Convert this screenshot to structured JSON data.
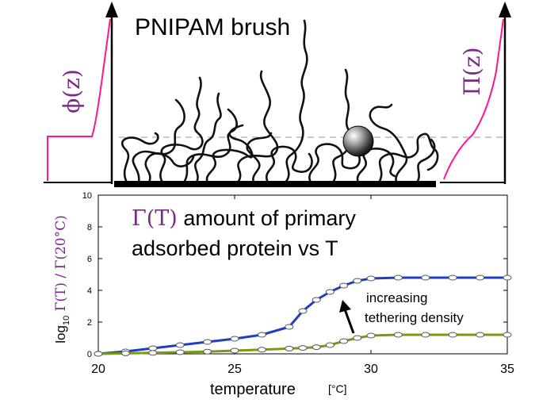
{
  "diagram": {
    "title": "PNIPAM brush",
    "left_profile_label": "ϕ(z)",
    "right_profile_label": "Π(z)",
    "profile_color": "#ff1493",
    "label_color": "#7b2a8c",
    "brush_color": "#111111"
  },
  "chart_data": {
    "type": "line",
    "annotation_title_symbol": "Γ(T)",
    "annotation_title_rest_line1": " amount of primary",
    "annotation_title_line2": "adsorbed protein vs T",
    "annotation_arrow_text_line1": "increasing",
    "annotation_arrow_text_line2": "tethering density",
    "ylabel_prefix": "log",
    "ylabel_sub": "10",
    "ylabel_expr": " Γ(T) / Γ(20°C)",
    "xlabel": "temperature",
    "xunit": "[°C]",
    "xlim": [
      20,
      35
    ],
    "ylim": [
      0,
      10
    ],
    "xticks": [
      20,
      25,
      30,
      35
    ],
    "yticks": [
      0,
      2,
      4,
      6,
      8,
      10
    ],
    "grid": false,
    "series": [
      {
        "color": "#1f3fbf",
        "x": [
          20,
          21,
          22,
          23,
          24,
          25,
          26,
          27,
          27.5,
          28,
          28.5,
          29,
          29.5,
          30,
          31,
          32,
          33,
          34,
          35
        ],
        "y": [
          0,
          0.15,
          0.35,
          0.55,
          0.75,
          0.95,
          1.2,
          1.7,
          2.7,
          3.4,
          3.9,
          4.3,
          4.6,
          4.75,
          4.8,
          4.8,
          4.8,
          4.8,
          4.8
        ]
      },
      {
        "color": "#7a9a10",
        "x": [
          20,
          21,
          22,
          23,
          24,
          25,
          26,
          27,
          27.5,
          28,
          28.5,
          29,
          29.5,
          30,
          31,
          32,
          33,
          34,
          35
        ],
        "y": [
          0,
          0.03,
          0.06,
          0.1,
          0.14,
          0.2,
          0.26,
          0.33,
          0.37,
          0.42,
          0.55,
          0.8,
          1.0,
          1.15,
          1.2,
          1.2,
          1.2,
          1.2,
          1.2
        ]
      }
    ]
  }
}
